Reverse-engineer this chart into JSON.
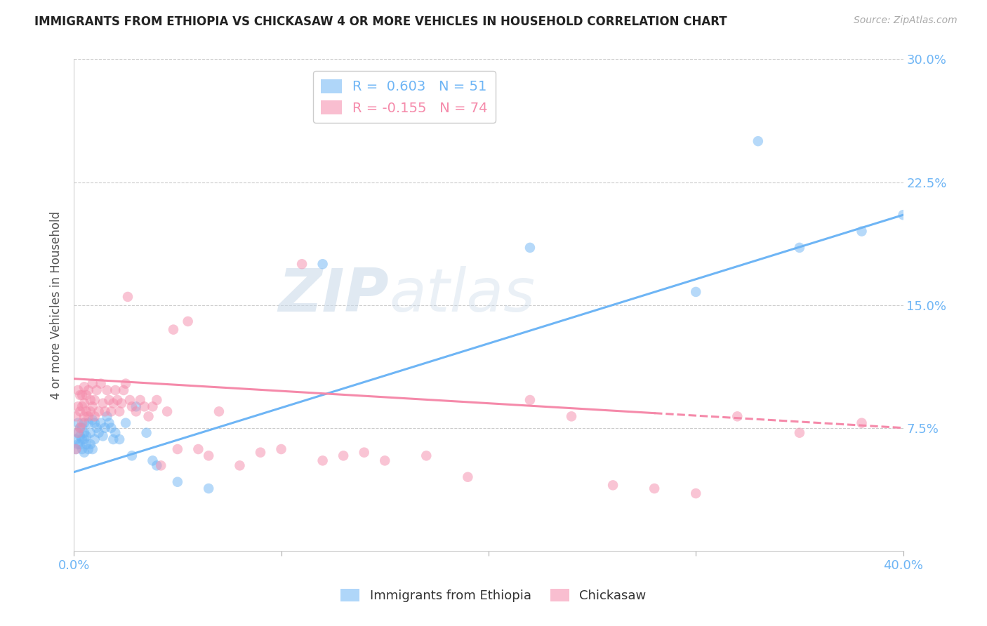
{
  "title": "IMMIGRANTS FROM ETHIOPIA VS CHICKASAW 4 OR MORE VEHICLES IN HOUSEHOLD CORRELATION CHART",
  "source": "Source: ZipAtlas.com",
  "ylabel": "4 or more Vehicles in Household",
  "x_min": 0.0,
  "x_max": 0.4,
  "y_min": 0.0,
  "y_max": 0.3,
  "y_ticks": [
    0.0,
    0.075,
    0.15,
    0.225,
    0.3
  ],
  "y_tick_labels": [
    "",
    "7.5%",
    "15.0%",
    "22.5%",
    "30.0%"
  ],
  "grid_color": "#cccccc",
  "background_color": "#ffffff",
  "series1_color": "#6eb5f5",
  "series2_color": "#f58aaa",
  "series1_label": "Immigrants from Ethiopia",
  "series2_label": "Chickasaw",
  "R1": "0.603",
  "N1": "51",
  "R2": "-0.155",
  "N2": "74",
  "line1_x0": 0.0,
  "line1_y0": 0.048,
  "line1_x1": 0.4,
  "line1_y1": 0.205,
  "line2_x0": 0.0,
  "line2_y0": 0.105,
  "line2_x1": 0.4,
  "line2_y1": 0.075,
  "series1_x": [
    0.001,
    0.001,
    0.002,
    0.002,
    0.002,
    0.003,
    0.003,
    0.003,
    0.004,
    0.004,
    0.004,
    0.005,
    0.005,
    0.005,
    0.005,
    0.006,
    0.006,
    0.007,
    0.007,
    0.008,
    0.008,
    0.009,
    0.009,
    0.01,
    0.01,
    0.011,
    0.012,
    0.013,
    0.014,
    0.015,
    0.016,
    0.017,
    0.018,
    0.019,
    0.02,
    0.022,
    0.025,
    0.028,
    0.03,
    0.035,
    0.038,
    0.04,
    0.05,
    0.065,
    0.12,
    0.22,
    0.3,
    0.33,
    0.35,
    0.38,
    0.4
  ],
  "series1_y": [
    0.062,
    0.068,
    0.065,
    0.072,
    0.078,
    0.065,
    0.07,
    0.075,
    0.062,
    0.068,
    0.075,
    0.06,
    0.068,
    0.072,
    0.078,
    0.065,
    0.07,
    0.062,
    0.078,
    0.065,
    0.072,
    0.062,
    0.08,
    0.068,
    0.078,
    0.075,
    0.072,
    0.078,
    0.07,
    0.075,
    0.082,
    0.078,
    0.075,
    0.068,
    0.072,
    0.068,
    0.078,
    0.058,
    0.088,
    0.072,
    0.055,
    0.052,
    0.042,
    0.038,
    0.175,
    0.185,
    0.158,
    0.25,
    0.185,
    0.195,
    0.205
  ],
  "series2_x": [
    0.001,
    0.001,
    0.002,
    0.002,
    0.002,
    0.003,
    0.003,
    0.003,
    0.004,
    0.004,
    0.004,
    0.005,
    0.005,
    0.005,
    0.006,
    0.006,
    0.007,
    0.007,
    0.008,
    0.008,
    0.009,
    0.009,
    0.01,
    0.01,
    0.011,
    0.012,
    0.013,
    0.014,
    0.015,
    0.016,
    0.017,
    0.018,
    0.019,
    0.02,
    0.021,
    0.022,
    0.023,
    0.024,
    0.025,
    0.026,
    0.027,
    0.028,
    0.03,
    0.032,
    0.034,
    0.036,
    0.038,
    0.04,
    0.042,
    0.045,
    0.048,
    0.05,
    0.055,
    0.06,
    0.065,
    0.07,
    0.08,
    0.09,
    0.1,
    0.11,
    0.12,
    0.13,
    0.14,
    0.15,
    0.17,
    0.19,
    0.22,
    0.24,
    0.26,
    0.28,
    0.3,
    0.32,
    0.35,
    0.38
  ],
  "series2_y": [
    0.062,
    0.082,
    0.072,
    0.088,
    0.098,
    0.075,
    0.085,
    0.095,
    0.078,
    0.088,
    0.095,
    0.082,
    0.09,
    0.1,
    0.085,
    0.095,
    0.082,
    0.098,
    0.085,
    0.092,
    0.088,
    0.102,
    0.082,
    0.092,
    0.098,
    0.085,
    0.102,
    0.09,
    0.085,
    0.098,
    0.092,
    0.085,
    0.09,
    0.098,
    0.092,
    0.085,
    0.09,
    0.098,
    0.102,
    0.155,
    0.092,
    0.088,
    0.085,
    0.092,
    0.088,
    0.082,
    0.088,
    0.092,
    0.052,
    0.085,
    0.135,
    0.062,
    0.14,
    0.062,
    0.058,
    0.085,
    0.052,
    0.06,
    0.062,
    0.175,
    0.055,
    0.058,
    0.06,
    0.055,
    0.058,
    0.045,
    0.092,
    0.082,
    0.04,
    0.038,
    0.035,
    0.082,
    0.072,
    0.078
  ]
}
